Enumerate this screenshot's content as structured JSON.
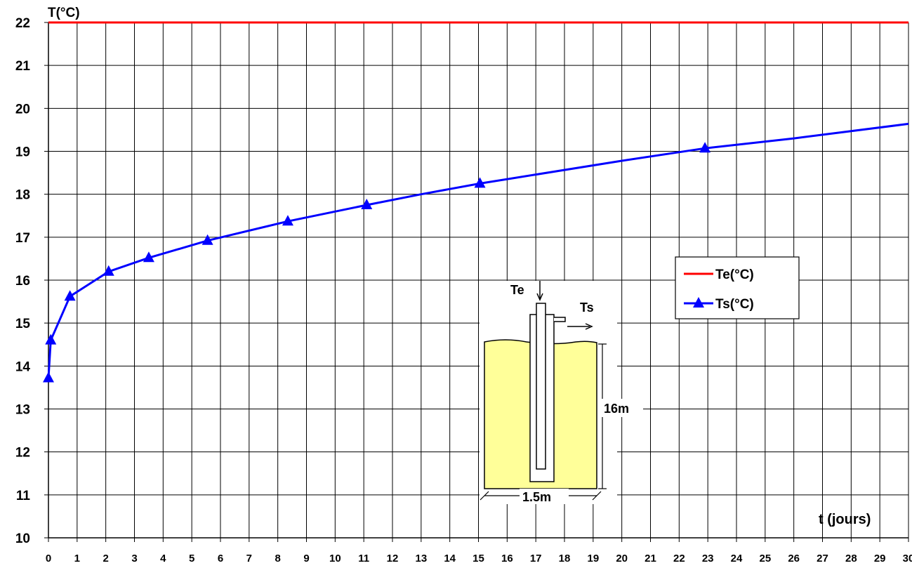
{
  "chart_data": {
    "type": "line",
    "ylabel": "T(°C)",
    "xlabel": "t (jours)",
    "xlim": [
      0,
      30
    ],
    "ylim": [
      10,
      22
    ],
    "x_ticks": [
      "0",
      "1",
      "2",
      "3",
      "4",
      "5",
      "6",
      "7",
      "8",
      "9",
      "10",
      "11",
      "12",
      "13",
      "14",
      "15",
      "16",
      "17",
      "18",
      "19",
      "20",
      "21",
      "22",
      "23",
      "24",
      "25",
      "26",
      "27",
      "28",
      "29",
      "30"
    ],
    "y_ticks": [
      "10",
      "11",
      "12",
      "13",
      "14",
      "15",
      "16",
      "17",
      "18",
      "19",
      "20",
      "21",
      "22"
    ],
    "grid": true,
    "legend_position": "right",
    "series": [
      {
        "name": "Te(°C)",
        "color": "#ff0000",
        "marker": "none",
        "x": [
          0,
          30
        ],
        "y": [
          22,
          22
        ]
      },
      {
        "name": "Ts(°C)",
        "color": "#0000ff",
        "marker": "triangle",
        "line_x": [
          0,
          0.08,
          0.75,
          2.1,
          3.5,
          5.55,
          8.35,
          11.1,
          13,
          15.05,
          20,
          22.9,
          26,
          30
        ],
        "line_y": [
          13.72,
          14.6,
          15.62,
          16.2,
          16.52,
          16.92,
          17.37,
          17.75,
          18.0,
          18.25,
          18.78,
          19.07,
          19.3,
          19.64
        ],
        "x": [
          0,
          0.08,
          0.75,
          2.1,
          3.5,
          5.55,
          8.35,
          11.1,
          15.05,
          22.9
        ],
        "y": [
          13.72,
          14.6,
          15.62,
          16.2,
          16.52,
          16.92,
          17.37,
          17.75,
          18.25,
          19.07
        ]
      }
    ],
    "inset": {
      "labels": {
        "inlet": "Te",
        "outlet": "Ts",
        "depth": "16m",
        "width": "1.5m"
      },
      "fill_color": "#ffff99"
    }
  }
}
